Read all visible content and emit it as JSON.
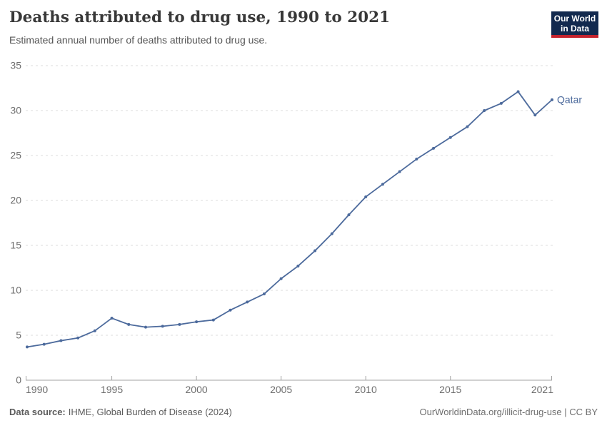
{
  "header": {
    "title": "Deaths attributed to drug use, 1990 to 2021",
    "subtitle": "Estimated annual number of deaths attributed to drug use."
  },
  "logo": {
    "line1": "Our World",
    "line2": "in Data"
  },
  "chart_data": {
    "type": "line",
    "title": "Deaths attributed to drug use, 1990 to 2021",
    "subtitle": "Estimated annual number of deaths attributed to drug use.",
    "xlabel": "",
    "ylabel": "",
    "ylim": [
      0,
      35
    ],
    "yticks": [
      0,
      5,
      10,
      15,
      20,
      25,
      30,
      35
    ],
    "xlim": [
      1990,
      2021
    ],
    "xticks": [
      1990,
      1995,
      2000,
      2005,
      2010,
      2015,
      2021
    ],
    "grid": "horizontal-dashed",
    "legend": "end-of-line-label",
    "series": [
      {
        "name": "Qatar",
        "color": "#4c6a9c",
        "x": [
          1990,
          1991,
          1992,
          1993,
          1994,
          1995,
          1996,
          1997,
          1998,
          1999,
          2000,
          2001,
          2002,
          2003,
          2004,
          2005,
          2006,
          2007,
          2008,
          2009,
          2010,
          2011,
          2012,
          2013,
          2014,
          2015,
          2016,
          2017,
          2018,
          2019,
          2020,
          2021
        ],
        "values": [
          3.7,
          4.0,
          4.4,
          4.7,
          5.5,
          6.9,
          6.2,
          5.9,
          6.0,
          6.2,
          6.5,
          6.7,
          7.8,
          8.7,
          9.6,
          11.3,
          12.7,
          14.4,
          16.3,
          18.4,
          20.4,
          21.8,
          23.2,
          24.6,
          25.8,
          27.0,
          28.2,
          30.0,
          30.8,
          32.1,
          29.5,
          31.2
        ]
      }
    ]
  },
  "footer": {
    "source_label": "Data source:",
    "source_value": "IHME, Global Burden of Disease (2024)",
    "credit": "OurWorldinData.org/illicit-drug-use | CC BY"
  },
  "colors": {
    "line": "#4c6a9c",
    "grid": "#dcdcdc",
    "axis": "#a3a3a3",
    "tick_label": "#6e6e6e",
    "logo_bg": "#12294e",
    "logo_stripe": "#c5232d"
  }
}
